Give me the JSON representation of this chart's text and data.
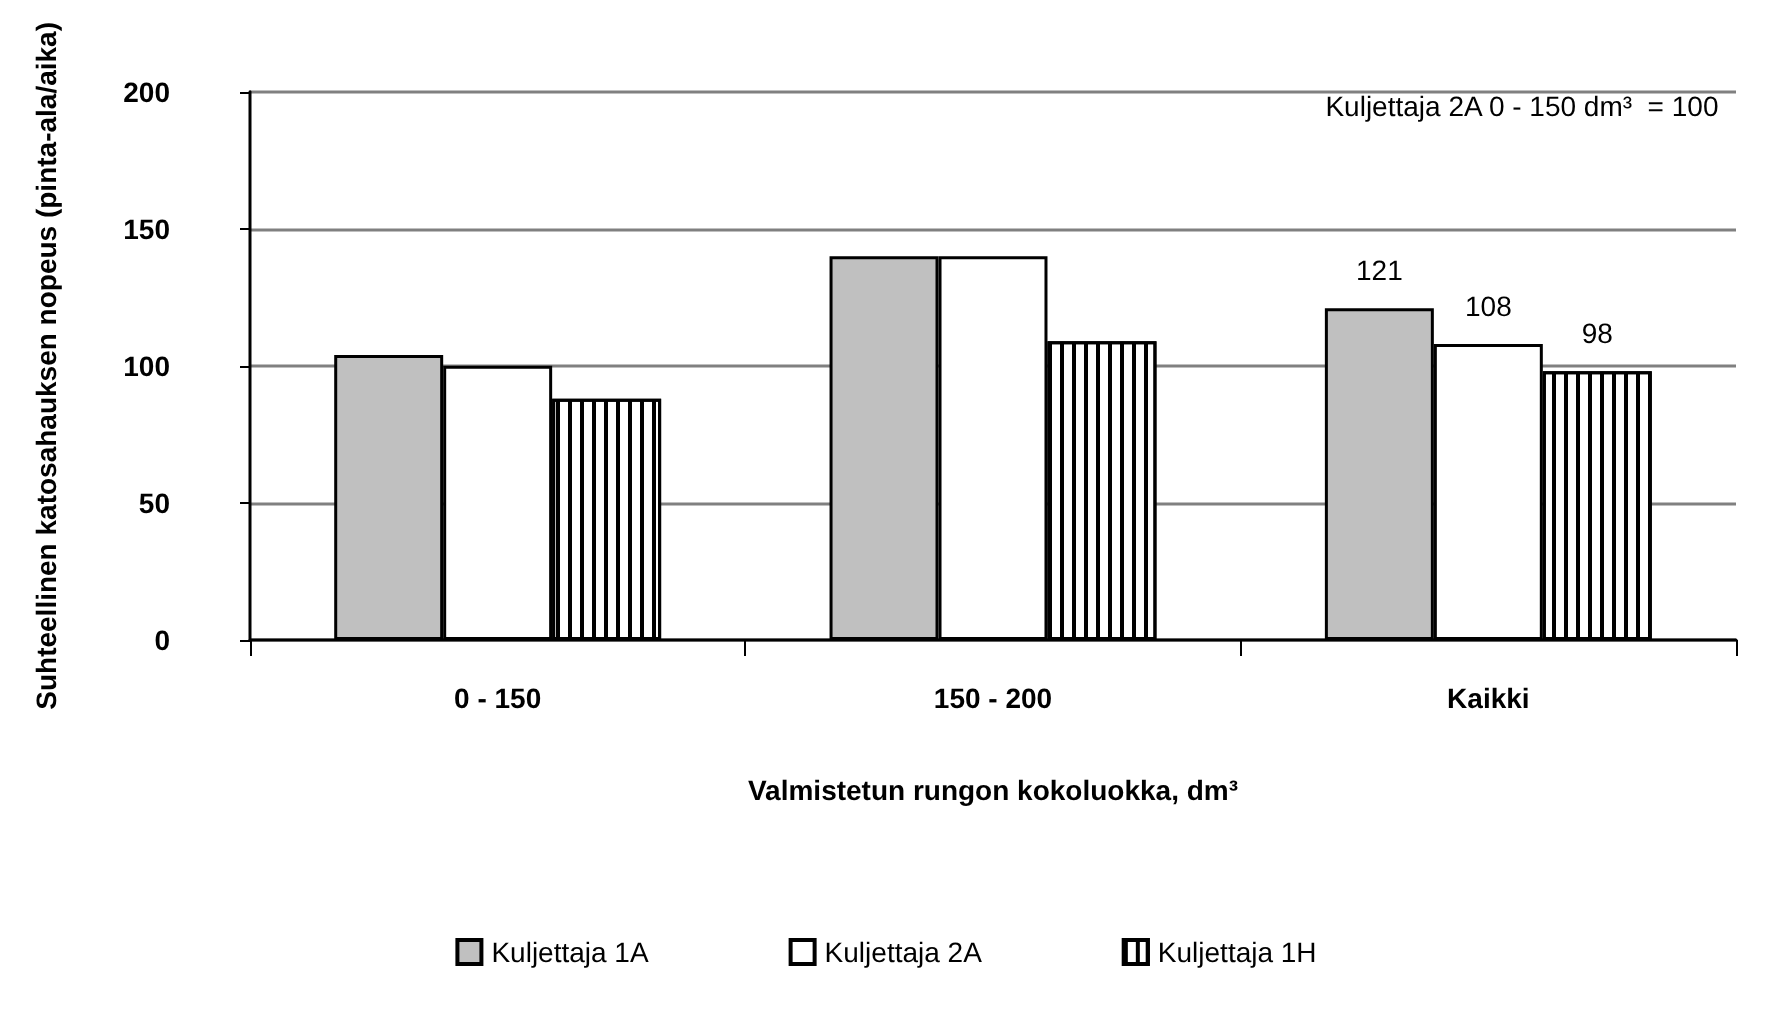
{
  "chart_data": {
    "type": "bar",
    "ylabel": "Suhteellinen katosahauksen nopeus (pinta-ala/aika)",
    "xlabel": "Valmistetun rungon kokoluokka, dm³",
    "annotations": [
      "Kuljettaja 2A 0 - 150 dm³  = 100"
    ],
    "categories": [
      "0 - 150",
      "150 - 200",
      "Kaikki"
    ],
    "series": [
      {
        "name": "Kuljettaja 1A",
        "color": "#c0c0c0",
        "values": [
          104,
          140,
          121
        ],
        "value_labels": [
          null,
          null,
          "121"
        ]
      },
      {
        "name": "Kuljettaja 2A",
        "color": "#ffffff",
        "values": [
          100,
          140,
          108
        ],
        "value_labels": [
          null,
          null,
          "108"
        ]
      },
      {
        "name": "Kuljettaja 1H",
        "color": "#ffffff",
        "values": [
          88,
          109,
          98
        ],
        "value_labels": [
          null,
          null,
          "98"
        ]
      }
    ],
    "ylim": [
      0,
      200
    ],
    "yticks": [
      0,
      50,
      100,
      150,
      200
    ],
    "grid": "y",
    "legend": "bottom"
  }
}
